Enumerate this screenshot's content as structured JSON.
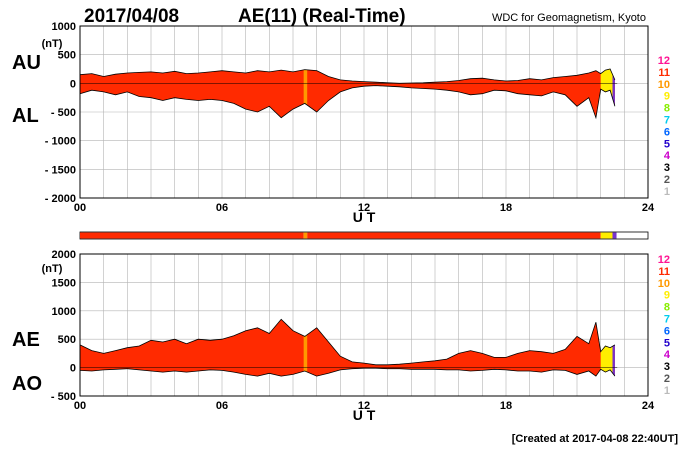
{
  "header": {
    "date": "2017/04/08",
    "title": "AE(11) (Real-Time)",
    "source": "WDC for Geomagnetism, Kyoto"
  },
  "footer": {
    "created": "[Created at 2017-04-08 22:40UT]"
  },
  "legend": {
    "items": [
      {
        "label": "12",
        "color": "#ff1493"
      },
      {
        "label": "11",
        "color": "#ff2a00"
      },
      {
        "label": "10",
        "color": "#ff9900"
      },
      {
        "label": "9",
        "color": "#ffee00"
      },
      {
        "label": "8",
        "color": "#88ee00"
      },
      {
        "label": "7",
        "color": "#00ccee"
      },
      {
        "label": "6",
        "color": "#0066ff"
      },
      {
        "label": "5",
        "color": "#2200cc"
      },
      {
        "label": "4",
        "color": "#cc00cc"
      },
      {
        "label": "3",
        "color": "#000000"
      },
      {
        "label": "2",
        "color": "#555555"
      },
      {
        "label": "1",
        "color": "#bbbbbb"
      }
    ]
  },
  "chart_data": [
    {
      "type": "area",
      "id": "au-al",
      "series_labels": [
        "AU",
        "AL"
      ],
      "yunit": "(nT)",
      "ylim": [
        -2000,
        1000
      ],
      "yticks": [
        1000,
        500,
        0,
        -500,
        -1000,
        -1500,
        -2000
      ],
      "ytick_labels": [
        "1000",
        "500",
        "0",
        "- 500",
        "- 1000",
        "- 1500",
        "- 2000"
      ],
      "xlabel": "U T",
      "xlim": [
        0,
        24
      ],
      "xticks": [
        0,
        6,
        12,
        18,
        24
      ],
      "xtick_labels": [
        "00",
        "06",
        "12",
        "18",
        "24"
      ],
      "fill_colors": {
        "main": "#ff2a00",
        "hour_9_5": "#ff9900",
        "recent": "#ffee00",
        "last": "#7733cc"
      },
      "upper_series": {
        "name": "AU",
        "x": [
          0,
          0.5,
          1,
          1.5,
          2,
          2.5,
          3,
          3.5,
          4,
          4.5,
          5,
          5.5,
          6,
          6.5,
          7,
          7.5,
          8,
          8.5,
          9,
          9.5,
          10,
          10.5,
          11,
          11.5,
          12,
          12.5,
          13,
          13.5,
          14,
          14.5,
          15,
          15.5,
          16,
          16.5,
          17,
          17.5,
          18,
          18.5,
          19,
          19.5,
          20,
          20.5,
          21,
          21.5,
          21.8,
          22,
          22.2,
          22.4,
          22.6
        ],
        "y": [
          150,
          170,
          120,
          160,
          180,
          190,
          200,
          180,
          210,
          170,
          180,
          200,
          220,
          200,
          180,
          220,
          200,
          230,
          200,
          240,
          220,
          120,
          60,
          40,
          30,
          20,
          10,
          0,
          5,
          10,
          20,
          30,
          50,
          80,
          90,
          60,
          40,
          50,
          80,
          60,
          100,
          120,
          140,
          180,
          220,
          170,
          230,
          250,
          60
        ]
      },
      "lower_series": {
        "name": "AL",
        "x": [
          0,
          0.5,
          1,
          1.5,
          2,
          2.5,
          3,
          3.5,
          4,
          4.5,
          5,
          5.5,
          6,
          6.5,
          7,
          7.5,
          8,
          8.5,
          9,
          9.5,
          10,
          10.5,
          11,
          11.5,
          12,
          12.5,
          13,
          13.5,
          14,
          14.5,
          15,
          15.5,
          16,
          16.5,
          17,
          17.5,
          18,
          18.5,
          19,
          19.5,
          20,
          20.5,
          21,
          21.5,
          21.8,
          22,
          22.2,
          22.4,
          22.6
        ],
        "y": [
          -180,
          -120,
          -150,
          -200,
          -150,
          -230,
          -250,
          -300,
          -250,
          -280,
          -300,
          -280,
          -300,
          -350,
          -450,
          -500,
          -400,
          -600,
          -450,
          -350,
          -500,
          -300,
          -150,
          -80,
          -50,
          -40,
          -50,
          -60,
          -80,
          -90,
          -100,
          -120,
          -150,
          -200,
          -180,
          -120,
          -130,
          -180,
          -200,
          -220,
          -150,
          -200,
          -400,
          -250,
          -600,
          -100,
          -150,
          -120,
          -400
        ]
      }
    },
    {
      "type": "area",
      "id": "ae-ao",
      "series_labels": [
        "AE",
        "AO"
      ],
      "yunit": "(nT)",
      "ylim": [
        -500,
        2000
      ],
      "yticks": [
        2000,
        1500,
        1000,
        500,
        0,
        -500
      ],
      "ytick_labels": [
        "2000",
        "1500",
        "1000",
        "500",
        "0",
        "- 500"
      ],
      "xlabel": "U T",
      "xlim": [
        0,
        24
      ],
      "xticks": [
        0,
        6,
        12,
        18,
        24
      ],
      "xtick_labels": [
        "00",
        "06",
        "12",
        "18",
        "24"
      ],
      "upper_series": {
        "name": "AE",
        "x": [
          0,
          0.5,
          1,
          1.5,
          2,
          2.5,
          3,
          3.5,
          4,
          4.5,
          5,
          5.5,
          6,
          6.5,
          7,
          7.5,
          8,
          8.5,
          9,
          9.5,
          10,
          10.5,
          11,
          11.5,
          12,
          12.5,
          13,
          13.5,
          14,
          14.5,
          15,
          15.5,
          16,
          16.5,
          17,
          17.5,
          18,
          18.5,
          19,
          19.5,
          20,
          20.5,
          21,
          21.5,
          21.8,
          22,
          22.2,
          22.4,
          22.6
        ],
        "y": [
          400,
          300,
          250,
          300,
          350,
          380,
          480,
          450,
          500,
          420,
          500,
          480,
          500,
          560,
          650,
          700,
          600,
          850,
          650,
          550,
          700,
          450,
          200,
          100,
          80,
          50,
          50,
          60,
          80,
          100,
          120,
          150,
          250,
          300,
          250,
          180,
          180,
          250,
          300,
          280,
          250,
          320,
          550,
          420,
          800,
          280,
          380,
          350,
          400
        ]
      },
      "lower_series": {
        "name": "AO",
        "x": [
          0,
          0.5,
          1,
          1.5,
          2,
          2.5,
          3,
          3.5,
          4,
          4.5,
          5,
          5.5,
          6,
          6.5,
          7,
          7.5,
          8,
          8.5,
          9,
          9.5,
          10,
          10.5,
          11,
          11.5,
          12,
          12.5,
          13,
          13.5,
          14,
          14.5,
          15,
          15.5,
          16,
          16.5,
          17,
          17.5,
          18,
          18.5,
          19,
          19.5,
          20,
          20.5,
          21,
          21.5,
          21.8,
          22,
          22.2,
          22.4,
          22.6
        ],
        "y": [
          -50,
          -60,
          -40,
          -30,
          -20,
          -40,
          -60,
          -80,
          -60,
          -80,
          -60,
          -40,
          -50,
          -80,
          -120,
          -150,
          -100,
          -150,
          -120,
          -60,
          -150,
          -100,
          -40,
          -20,
          -10,
          -10,
          -20,
          -20,
          -30,
          -30,
          -30,
          -40,
          -40,
          -60,
          -50,
          -30,
          -40,
          -60,
          -60,
          -80,
          -40,
          -50,
          -120,
          -60,
          -150,
          -30,
          -80,
          -40,
          -150
        ]
      }
    }
  ],
  "strip_bar": {
    "segments": [
      {
        "from": 0,
        "to": 9.45,
        "color": "#ff2a00"
      },
      {
        "from": 9.45,
        "to": 9.6,
        "color": "#ff9900"
      },
      {
        "from": 9.6,
        "to": 22.0,
        "color": "#ff2a00"
      },
      {
        "from": 22.0,
        "to": 22.5,
        "color": "#ffee00"
      },
      {
        "from": 22.5,
        "to": 22.67,
        "color": "#7733cc"
      }
    ]
  }
}
